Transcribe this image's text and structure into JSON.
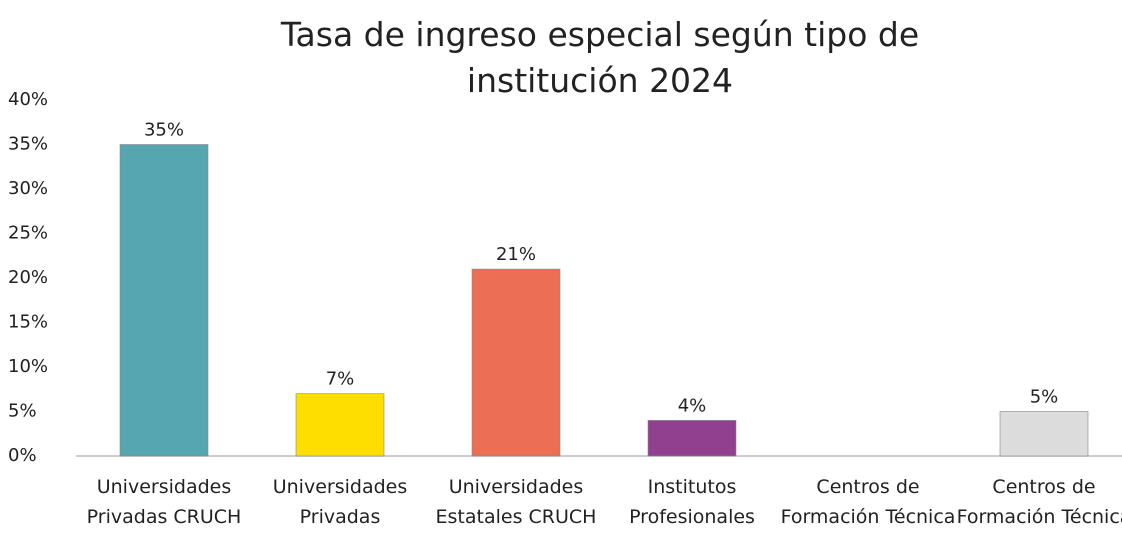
{
  "chart_data": {
    "type": "bar",
    "title": "Tasa de ingreso especial según tipo de institución 2024",
    "categories": [
      "Universidades Privadas CRUCH",
      "Universidades Privadas",
      "Universidades Estatales CRUCH",
      "Institutos Profesionales",
      "Centros de Formación Técnica",
      "Centros de Formación Técnica"
    ],
    "values": [
      35,
      7,
      21,
      4,
      null,
      5
    ],
    "value_labels": [
      "35%",
      "7%",
      "21%",
      "4%",
      null,
      "5%"
    ],
    "colors": [
      "#56a6b1",
      "#fedd00",
      "#ec6e55",
      "#913f8f",
      "#cccccc",
      "#dcdcdc"
    ],
    "ylim": [
      0,
      40
    ],
    "yticks": [
      {
        "value": 0,
        "label": "0%"
      },
      {
        "value": 5,
        "label": "5%"
      },
      {
        "value": 10,
        "label": "10%"
      },
      {
        "value": 15,
        "label": "15%"
      },
      {
        "value": 20,
        "label": "20%"
      },
      {
        "value": 25,
        "label": "25%"
      },
      {
        "value": 30,
        "label": "30%"
      },
      {
        "value": 35,
        "label": "35%"
      },
      {
        "value": 40,
        "label": "40%"
      }
    ],
    "grid": false
  }
}
